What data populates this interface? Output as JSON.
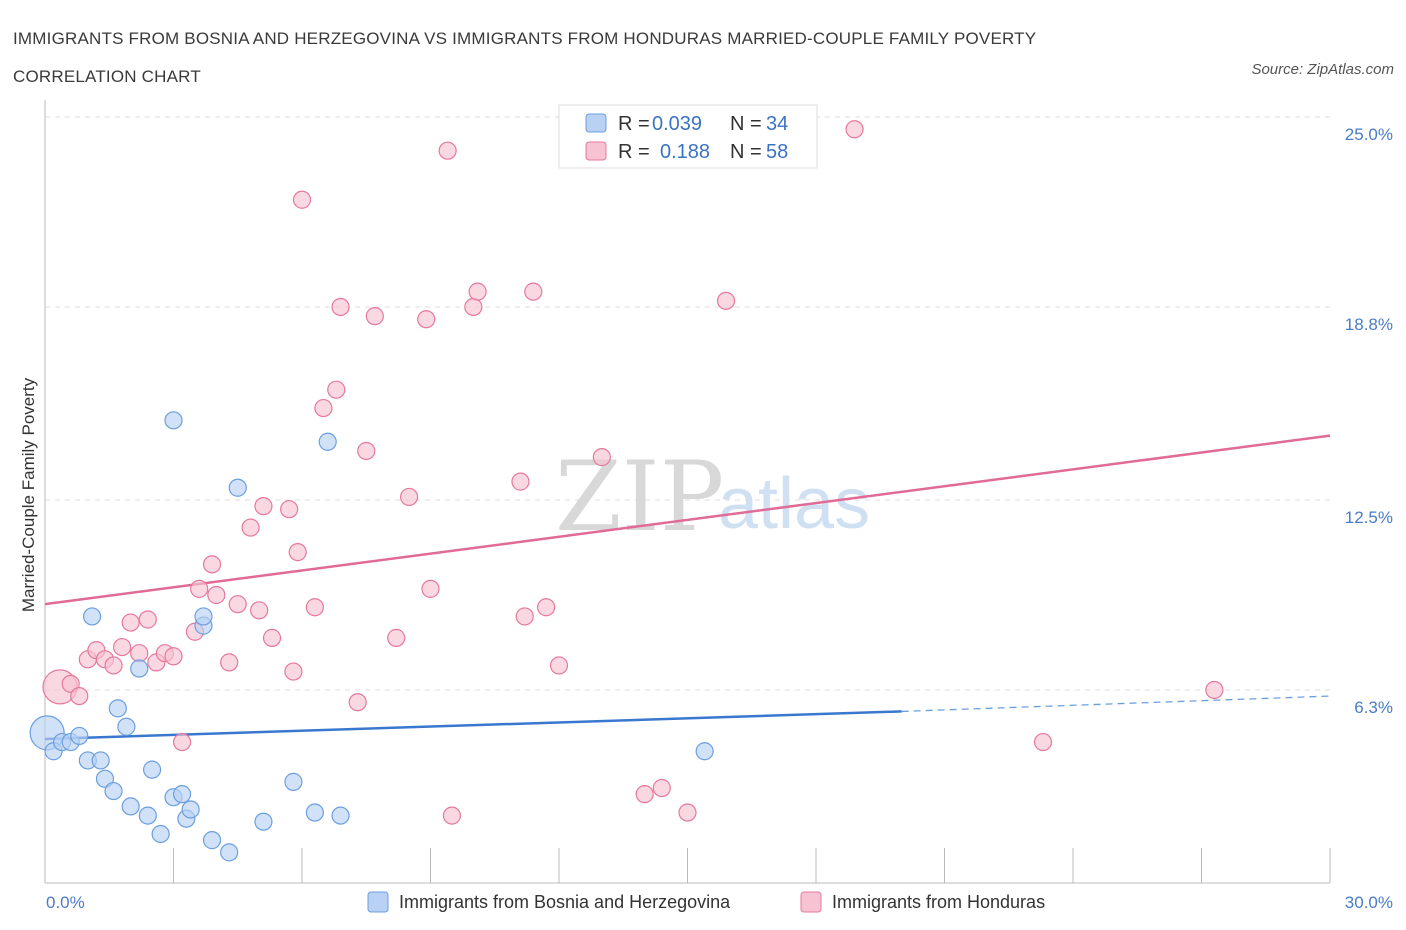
{
  "title": "IMMIGRANTS FROM BOSNIA AND HERZEGOVINA VS IMMIGRANTS FROM HONDURAS MARRIED-COUPLE FAMILY POVERTY CORRELATION CHART",
  "source": "Source: ZipAtlas.com",
  "watermark": {
    "zip": "ZIP",
    "atlas": "atlas"
  },
  "legend": {
    "r_label": "R =",
    "n_label": "N =",
    "rows": [
      {
        "r": "0.039",
        "n": "34"
      },
      {
        "r": "0.188",
        "n": "58"
      }
    ]
  },
  "chart_data": {
    "type": "scatter",
    "title": "IMMIGRANTS FROM BOSNIA AND HERZEGOVINA VS IMMIGRANTS FROM HONDURAS MARRIED-COUPLE FAMILY POVERTY CORRELATION CHART",
    "xlabel": "",
    "ylabel": "Married-Couple Family Poverty",
    "xlim": [
      0,
      30
    ],
    "ylim": [
      0,
      25
    ],
    "x_tick_labels": [
      "0.0%",
      "30.0%"
    ],
    "y_tick_labels": [
      "25.0%",
      "18.8%",
      "12.5%",
      "6.3%"
    ],
    "y_ticks": [
      25.0,
      18.8,
      12.5,
      6.3
    ],
    "grid": true,
    "legend_position": "top-center",
    "series": [
      {
        "name": "Immigrants from Bosnia and Herzegovina",
        "color": "#6b9fe0",
        "fill": "#b9d1f3",
        "trend": {
          "x": [
            0,
            20,
            30
          ],
          "y": [
            4.7,
            5.6,
            6.1
          ],
          "solid_until": 20
        },
        "points": [
          {
            "x": 0.05,
            "y": 4.9,
            "big": true
          },
          {
            "x": 0.2,
            "y": 4.3
          },
          {
            "x": 0.4,
            "y": 4.6
          },
          {
            "x": 0.6,
            "y": 4.6
          },
          {
            "x": 0.8,
            "y": 4.8
          },
          {
            "x": 1.0,
            "y": 4.0
          },
          {
            "x": 1.3,
            "y": 4.0
          },
          {
            "x": 1.1,
            "y": 8.7
          },
          {
            "x": 1.7,
            "y": 5.7
          },
          {
            "x": 1.9,
            "y": 5.1
          },
          {
            "x": 2.2,
            "y": 7.0
          },
          {
            "x": 1.4,
            "y": 3.4
          },
          {
            "x": 1.6,
            "y": 3.0
          },
          {
            "x": 2.5,
            "y": 3.7
          },
          {
            "x": 2.0,
            "y": 2.5
          },
          {
            "x": 2.4,
            "y": 2.2
          },
          {
            "x": 2.7,
            "y": 1.6
          },
          {
            "x": 3.0,
            "y": 15.1
          },
          {
            "x": 3.0,
            "y": 2.8
          },
          {
            "x": 3.2,
            "y": 2.9
          },
          {
            "x": 3.3,
            "y": 2.1
          },
          {
            "x": 3.4,
            "y": 2.4
          },
          {
            "x": 3.7,
            "y": 8.4
          },
          {
            "x": 3.7,
            "y": 8.7
          },
          {
            "x": 3.9,
            "y": 1.4
          },
          {
            "x": 4.3,
            "y": 1.0
          },
          {
            "x": 4.5,
            "y": 12.9
          },
          {
            "x": 5.1,
            "y": 2.0
          },
          {
            "x": 5.8,
            "y": 3.3
          },
          {
            "x": 6.3,
            "y": 2.3
          },
          {
            "x": 6.6,
            "y": 14.4
          },
          {
            "x": 6.9,
            "y": 2.2
          },
          {
            "x": 15.4,
            "y": 4.3
          }
        ]
      },
      {
        "name": "Immigrants from Honduras",
        "color": "#e6789e",
        "fill": "#f7c3d3",
        "trend": {
          "x": [
            0,
            30
          ],
          "y": [
            9.1,
            14.6
          ]
        },
        "points": [
          {
            "x": 0.35,
            "y": 6.4,
            "big": true
          },
          {
            "x": 0.6,
            "y": 6.5
          },
          {
            "x": 0.8,
            "y": 6.1
          },
          {
            "x": 1.0,
            "y": 7.3
          },
          {
            "x": 1.2,
            "y": 7.6
          },
          {
            "x": 1.4,
            "y": 7.3
          },
          {
            "x": 1.6,
            "y": 7.1
          },
          {
            "x": 1.8,
            "y": 7.7
          },
          {
            "x": 2.0,
            "y": 8.5
          },
          {
            "x": 2.2,
            "y": 7.5
          },
          {
            "x": 2.4,
            "y": 8.6
          },
          {
            "x": 2.6,
            "y": 7.2
          },
          {
            "x": 2.8,
            "y": 7.5
          },
          {
            "x": 3.0,
            "y": 7.4
          },
          {
            "x": 3.2,
            "y": 4.6
          },
          {
            "x": 3.5,
            "y": 8.2
          },
          {
            "x": 3.6,
            "y": 9.6
          },
          {
            "x": 3.9,
            "y": 10.4
          },
          {
            "x": 4.0,
            "y": 9.4
          },
          {
            "x": 4.3,
            "y": 7.2
          },
          {
            "x": 4.5,
            "y": 9.1
          },
          {
            "x": 4.8,
            "y": 11.6
          },
          {
            "x": 5.0,
            "y": 8.9
          },
          {
            "x": 5.1,
            "y": 12.3
          },
          {
            "x": 5.3,
            "y": 8.0
          },
          {
            "x": 5.7,
            "y": 12.2
          },
          {
            "x": 5.8,
            "y": 6.9
          },
          {
            "x": 5.9,
            "y": 10.8
          },
          {
            "x": 6.0,
            "y": 22.3
          },
          {
            "x": 6.3,
            "y": 9.0
          },
          {
            "x": 6.5,
            "y": 15.5
          },
          {
            "x": 6.8,
            "y": 16.1
          },
          {
            "x": 6.9,
            "y": 18.8
          },
          {
            "x": 7.3,
            "y": 5.9
          },
          {
            "x": 7.5,
            "y": 14.1
          },
          {
            "x": 7.7,
            "y": 18.5
          },
          {
            "x": 8.2,
            "y": 8.0
          },
          {
            "x": 8.5,
            "y": 12.6
          },
          {
            "x": 8.9,
            "y": 18.4
          },
          {
            "x": 9.0,
            "y": 9.6
          },
          {
            "x": 9.4,
            "y": 23.9
          },
          {
            "x": 9.5,
            "y": 2.2
          },
          {
            "x": 10.0,
            "y": 18.8
          },
          {
            "x": 10.1,
            "y": 19.3
          },
          {
            "x": 11.1,
            "y": 13.1
          },
          {
            "x": 11.2,
            "y": 8.7
          },
          {
            "x": 11.4,
            "y": 19.3
          },
          {
            "x": 11.7,
            "y": 9.0
          },
          {
            "x": 12.0,
            "y": 7.1
          },
          {
            "x": 13.0,
            "y": 13.9
          },
          {
            "x": 14.0,
            "y": 2.9
          },
          {
            "x": 14.4,
            "y": 3.1
          },
          {
            "x": 15.0,
            "y": 2.3
          },
          {
            "x": 15.9,
            "y": 19.0
          },
          {
            "x": 18.9,
            "y": 24.6
          },
          {
            "x": 23.3,
            "y": 4.6
          },
          {
            "x": 27.3,
            "y": 6.3
          }
        ]
      }
    ]
  }
}
